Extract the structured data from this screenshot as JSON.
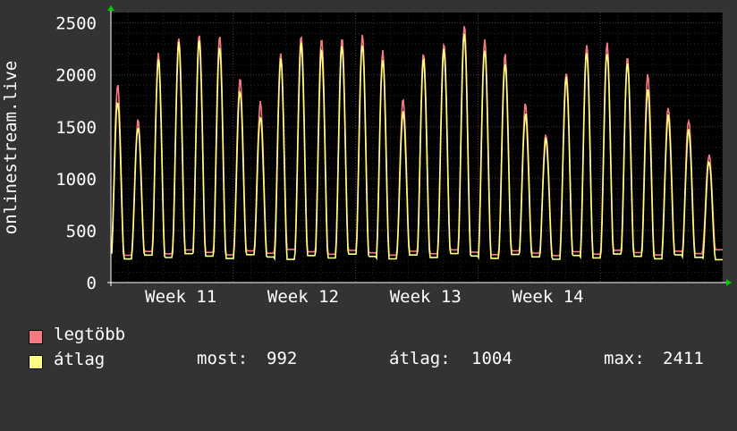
{
  "chart_data": {
    "type": "line",
    "ylabel": "onlinestream.live",
    "ylim": [
      0,
      2600
    ],
    "yticks": [
      0,
      500,
      1000,
      1500,
      2000,
      2500
    ],
    "xticks": [
      "Week 11",
      "Week 12",
      "Week 13",
      "Week 14"
    ],
    "grid": true,
    "days": 35,
    "daily_peak_max": [
      1900,
      1560,
      2200,
      2360,
      2400,
      2380,
      1960,
      1730,
      2200,
      2380,
      2360,
      2360,
      2380,
      2220,
      1760,
      2210,
      2310,
      2480,
      2330,
      2190,
      1720,
      1430,
      2030,
      2290,
      2300,
      2160,
      2000,
      1690,
      1570,
      1230
    ],
    "daily_peak_avg": [
      1750,
      1500,
      2150,
      2300,
      2330,
      2270,
      1850,
      1600,
      2150,
      2300,
      2240,
      2280,
      2300,
      2150,
      1640,
      2150,
      2240,
      2400,
      2250,
      2110,
      1620,
      1380,
      1970,
      2220,
      2220,
      2120,
      1860,
      1600,
      1470,
      1170
    ],
    "series": [
      {
        "name": "legtöbb",
        "color": "#f57a80"
      },
      {
        "name": "átlag",
        "color": "#ffff80"
      }
    ],
    "stats": {
      "now_label": "most:",
      "now": "992",
      "avg_label": "átlag:",
      "avg": "1004",
      "max_label": "max:",
      "max": "2411"
    }
  }
}
